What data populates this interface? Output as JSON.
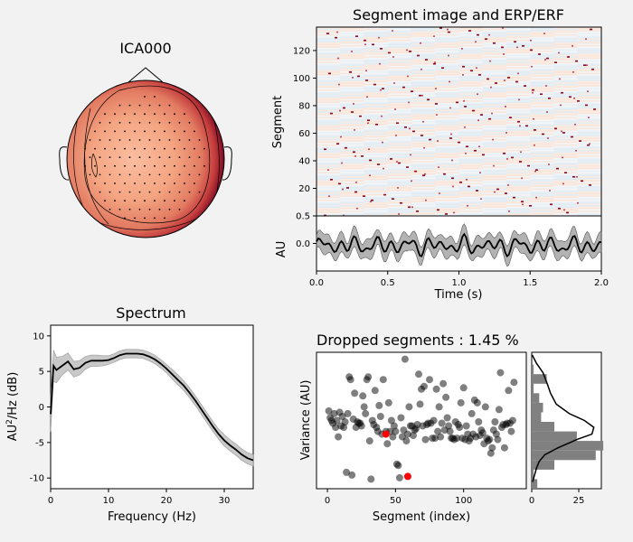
{
  "figure": {
    "background": "#f2f2f2"
  },
  "chart_data": [
    {
      "type": "heatmap",
      "name": "topomap",
      "title": "ICA000",
      "colormap": "RdBu_r"
    },
    {
      "type": "heatmap",
      "name": "segment-image",
      "title": "Segment image and ERP/ERF",
      "ylabel": "Segment",
      "ylim": [
        0,
        137
      ],
      "yticks": [
        "20",
        "40",
        "60",
        "80",
        "100",
        "120"
      ],
      "xlim": [
        0,
        2
      ],
      "n_segments": 137
    },
    {
      "type": "line",
      "name": "erp",
      "xlabel": "Time (s)",
      "ylabel": "AU",
      "xlim": [
        0,
        2
      ],
      "ylim": [
        -0.5,
        0.5
      ],
      "xticks": [
        "0.0",
        "0.5",
        "1.0",
        "1.5",
        "2.0"
      ],
      "yticks": [
        "0.5",
        "0.0"
      ],
      "line_color": "#000000",
      "band_color": "#808080"
    },
    {
      "type": "line",
      "name": "spectrum",
      "title": "Spectrum",
      "xlabel": "Frequency (Hz)",
      "ylabel": "AU²/Hz (dB)",
      "ylabel_main": "AU",
      "ylabel_sup": "2",
      "ylabel_rest": "/Hz (dB)",
      "xlim": [
        0,
        35
      ],
      "ylim": [
        -11.5,
        11.5
      ],
      "xticks": [
        "0",
        "10",
        "20",
        "30"
      ],
      "yticks": [
        "10",
        "5",
        "0",
        "-5",
        "-10"
      ],
      "x": [
        0,
        0.5,
        1,
        2,
        3,
        4,
        5,
        6,
        7,
        8,
        9,
        10,
        11,
        12,
        13,
        14,
        15,
        16,
        17,
        18,
        19,
        20,
        21,
        22,
        23,
        24,
        25,
        26,
        27,
        28,
        29,
        30,
        31,
        32,
        33,
        34,
        35
      ],
      "mean": [
        -1.0,
        5.8,
        5.2,
        5.8,
        6.4,
        5.3,
        5.5,
        6.2,
        6.5,
        6.5,
        6.5,
        6.6,
        6.9,
        7.3,
        7.5,
        7.5,
        7.5,
        7.4,
        7.1,
        6.7,
        6.1,
        5.4,
        4.6,
        3.8,
        3.0,
        2.0,
        0.9,
        -0.3,
        -1.5,
        -2.7,
        -3.8,
        -4.7,
        -5.4,
        -6.0,
        -6.7,
        -7.2,
        -7.5
      ],
      "band_halfwidth": [
        2.5,
        2.2,
        1.8,
        1.3,
        1.2,
        1.1,
        1.0,
        0.9,
        0.8,
        0.8,
        0.7,
        0.6,
        0.6,
        0.6,
        0.6,
        0.6,
        0.6,
        0.6,
        0.6,
        0.6,
        0.6,
        0.6,
        0.7,
        0.7,
        0.7,
        0.7,
        0.7,
        0.7,
        0.7,
        0.7,
        0.7,
        0.8,
        0.8,
        0.8,
        0.8,
        0.8,
        0.8
      ],
      "line_color": "#000000",
      "band_color": "#c8c8c8"
    },
    {
      "type": "scatter",
      "name": "dropped-segments",
      "title": "Dropped segments : 1.45 %",
      "xlabel": "Segment (index)",
      "ylabel": "Variance (AU)",
      "xlim": [
        -8,
        146
      ],
      "ylim": [
        0,
        100
      ],
      "xticks": [
        "0",
        "50",
        "100"
      ],
      "point_color": "#000000",
      "dropped_color": "#ff0000",
      "points": [
        [
          1,
          57
        ],
        [
          2,
          52
        ],
        [
          3,
          50
        ],
        [
          4,
          48
        ],
        [
          5,
          55
        ],
        [
          6,
          45
        ],
        [
          7,
          50
        ],
        [
          8,
          38
        ],
        [
          9,
          56
        ],
        [
          10,
          46
        ],
        [
          11,
          53
        ],
        [
          12,
          45
        ],
        [
          13,
          49
        ],
        [
          14,
          12
        ],
        [
          15,
          55
        ],
        [
          16,
          82
        ],
        [
          17,
          80
        ],
        [
          18,
          10
        ],
        [
          19,
          51
        ],
        [
          20,
          70
        ],
        [
          21,
          45
        ],
        [
          22,
          49
        ],
        [
          23,
          48
        ],
        [
          24,
          48
        ],
        [
          25,
          46
        ],
        [
          26,
          68
        ],
        [
          27,
          60
        ],
        [
          28,
          55
        ],
        [
          29,
          80
        ],
        [
          30,
          82
        ],
        [
          31,
          35
        ],
        [
          32,
          7
        ],
        [
          33,
          50
        ],
        [
          34,
          47
        ],
        [
          35,
          72
        ],
        [
          36,
          45
        ],
        [
          37,
          42
        ],
        [
          38,
          61
        ],
        [
          39,
          53
        ],
        [
          40,
          40
        ],
        [
          41,
          80
        ],
        [
          43,
          42
        ],
        [
          44,
          33
        ],
        [
          45,
          63
        ],
        [
          46,
          42
        ],
        [
          47,
          50
        ],
        [
          48,
          38
        ],
        [
          49,
          46
        ],
        [
          50,
          42
        ],
        [
          51,
          18
        ],
        [
          52,
          17
        ],
        [
          53,
          8
        ],
        [
          54,
          52
        ],
        [
          55,
          38
        ],
        [
          56,
          43
        ],
        [
          57,
          95
        ],
        [
          58,
          35
        ],
        [
          59,
          40
        ],
        [
          60,
          60
        ],
        [
          61,
          46
        ],
        [
          62,
          46
        ],
        [
          63,
          39
        ],
        [
          64,
          43
        ],
        [
          65,
          44
        ],
        [
          66,
          47
        ],
        [
          67,
          84
        ],
        [
          68,
          62
        ],
        [
          69,
          73
        ],
        [
          70,
          46
        ],
        [
          71,
          75
        ],
        [
          72,
          36
        ],
        [
          73,
          47
        ],
        [
          74,
          48
        ],
        [
          75,
          80
        ],
        [
          76,
          48
        ],
        [
          77,
          37
        ],
        [
          78,
          50
        ],
        [
          79,
          37
        ],
        [
          80,
          73
        ],
        [
          81,
          42
        ],
        [
          82,
          60
        ],
        [
          83,
          38
        ],
        [
          84,
          48
        ],
        [
          85,
          77
        ],
        [
          86,
          43
        ],
        [
          87,
          67
        ],
        [
          88,
          52
        ],
        [
          89,
          46
        ],
        [
          90,
          42
        ],
        [
          91,
          37
        ],
        [
          92,
          37
        ],
        [
          93,
          36
        ],
        [
          94,
          49
        ],
        [
          95,
          37
        ],
        [
          96,
          47
        ],
        [
          97,
          45
        ],
        [
          98,
          63
        ],
        [
          99,
          37
        ],
        [
          100,
          74
        ],
        [
          101,
          36
        ],
        [
          102,
          46
        ],
        [
          103,
          40
        ],
        [
          104,
          35
        ],
        [
          105,
          37
        ],
        [
          106,
          55
        ],
        [
          107,
          40
        ],
        [
          108,
          65
        ],
        [
          109,
          38
        ],
        [
          110,
          63
        ],
        [
          111,
          49
        ],
        [
          112,
          39
        ],
        [
          113,
          43
        ],
        [
          114,
          41
        ],
        [
          115,
          33
        ],
        [
          116,
          60
        ],
        [
          117,
          37
        ],
        [
          118,
          35
        ],
        [
          119,
          36
        ],
        [
          120,
          26
        ],
        [
          121,
          30
        ],
        [
          122,
          43
        ],
        [
          123,
          49
        ],
        [
          124,
          40
        ],
        [
          125,
          36
        ],
        [
          126,
          58
        ],
        [
          127,
          85
        ],
        [
          128,
          45
        ],
        [
          129,
          47
        ],
        [
          130,
          30
        ],
        [
          131,
          47
        ],
        [
          132,
          48
        ],
        [
          133,
          72
        ],
        [
          134,
          48
        ],
        [
          135,
          42
        ],
        [
          136,
          50
        ],
        [
          137,
          78
        ]
      ],
      "dropped_points": [
        [
          43,
          40
        ],
        [
          59,
          9
        ]
      ]
    },
    {
      "type": "bar",
      "name": "variance-histogram",
      "xlim": [
        0,
        37
      ],
      "ylim": [
        0,
        100
      ],
      "xticks": [
        "0",
        "25"
      ],
      "bins": [
        [
          0,
          7,
          3
        ],
        [
          7,
          14,
          1
        ],
        [
          14,
          21,
          12
        ],
        [
          21,
          28,
          34
        ],
        [
          28,
          35,
          38
        ],
        [
          35,
          42,
          24
        ],
        [
          42,
          49,
          12
        ],
        [
          49,
          56,
          5
        ],
        [
          56,
          63,
          6
        ],
        [
          63,
          70,
          4
        ],
        [
          70,
          77,
          1
        ],
        [
          77,
          84,
          8
        ],
        [
          84,
          91,
          1
        ]
      ],
      "kde": [
        [
          98,
          0.3
        ],
        [
          92,
          2.5
        ],
        [
          85,
          6
        ],
        [
          78,
          8
        ],
        [
          70,
          10
        ],
        [
          62,
          13
        ],
        [
          55,
          20
        ],
        [
          50,
          28
        ],
        [
          45,
          33
        ],
        [
          40,
          32
        ],
        [
          36,
          24
        ],
        [
          30,
          14
        ],
        [
          25,
          7
        ],
        [
          20,
          4
        ],
        [
          15,
          2.5
        ],
        [
          10,
          1.5
        ],
        [
          5,
          0.5
        ]
      ],
      "bar_color": "#808080"
    }
  ]
}
